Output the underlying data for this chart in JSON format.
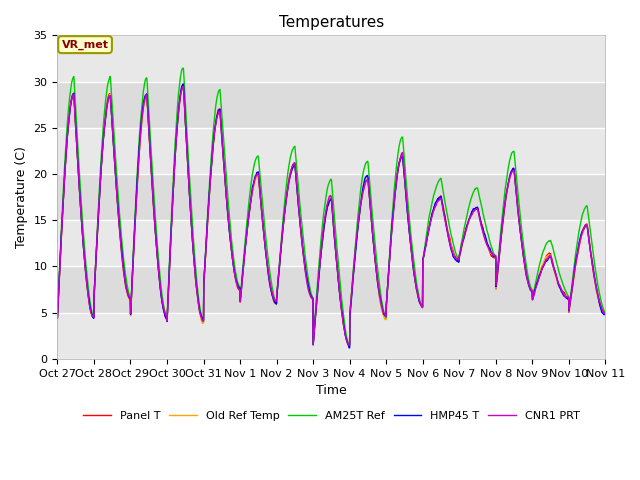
{
  "title": "Temperatures",
  "xlabel": "Time",
  "ylabel": "Temperature (C)",
  "ylim": [
    0,
    35
  ],
  "annotation_text": "VR_met",
  "background_color": "#ffffff",
  "plot_bg_color": "#dcdcdc",
  "grid_color": "#ffffff",
  "band_color_light": "#e8e8e8",
  "x_tick_labels": [
    "Oct 27",
    "Oct 28",
    "Oct 29",
    "Oct 30",
    "Oct 31",
    "Nov 1",
    "Nov 2",
    "Nov 3",
    "Nov 4",
    "Nov 5",
    "Nov 6",
    "Nov 7",
    "Nov 8",
    "Nov 9",
    "Nov 10",
    "Nov 11"
  ],
  "series_colors": [
    "#ff0000",
    "#ffa500",
    "#00cc00",
    "#0000ff",
    "#cc00cc"
  ],
  "series_names": [
    "Panel T",
    "Old Ref Temp",
    "AM25T Ref",
    "HMP45 T",
    "CNR1 PRT"
  ],
  "line_width": 1.0,
  "title_fontsize": 11,
  "label_fontsize": 9,
  "tick_fontsize": 8
}
